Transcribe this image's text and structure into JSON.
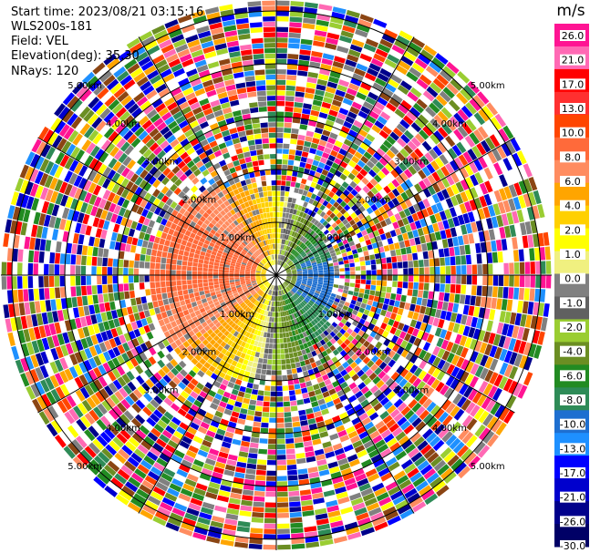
{
  "header": {
    "start_time": "Start time: 2023/08/21 03:15:16",
    "instrument": "WLS200s-181",
    "field": "Field: VEL",
    "elevation": "Elevation(deg): 35.30",
    "nrays": "NRays: 120"
  },
  "colorbar": {
    "unit": "m/s",
    "labels": [
      "26.0",
      "21.0",
      "17.0",
      "13.0",
      "10.0",
      "8.0",
      "6.0",
      "4.0",
      "2.0",
      "1.0",
      "0.0",
      "-1.0",
      "-2.0",
      "-4.0",
      "-6.0",
      "-8.0",
      "-10.0",
      "-13.0",
      "-17.0",
      "-21.0",
      "-26.0",
      "-30.0"
    ],
    "colors": [
      "#ff1493",
      "#ff69b4",
      "#ff0000",
      "#ff3030",
      "#ff4500",
      "#ff6a3a",
      "#ff8c60",
      "#ffa500",
      "#ffd000",
      "#ffff00",
      "#f0f080",
      "#808080",
      "#606060",
      "#9acd32",
      "#6b8e23",
      "#228b22",
      "#2e8b57",
      "#1e6fd0",
      "#1e90ff",
      "#0000ff",
      "#0000cd",
      "#00008b",
      "#000066"
    ]
  },
  "range_labels": [
    "1.00km",
    "2.00km",
    "3.00km",
    "4.00km",
    "5.00km"
  ],
  "chart_data": {
    "type": "heatmap",
    "projection": "polar PPI",
    "field": "VEL",
    "units": "m/s",
    "nrays": 120,
    "elevation_deg": 35.3,
    "range_rings_km": [
      1,
      2,
      3,
      4,
      5
    ],
    "vmin": -30,
    "vmax": 26,
    "pattern": "coherent radial velocity within ~2 km: positive (orange/red) to the west, negative (blue) to the east/south-east, green/grey near zero to the north; noise beyond"
  }
}
